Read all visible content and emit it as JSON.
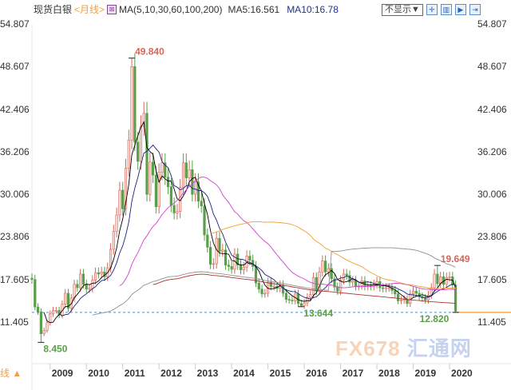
{
  "header": {
    "instrument": "现货白银",
    "period": "<月线>",
    "ma_label": "MA(5,10,30,60,100,200)",
    "ma5": "MA5:16.561",
    "ma10": "MA10:16.78"
  },
  "toolbar": {
    "display_select": "不显示▼",
    "buttons": [
      "crosshair",
      "zoom",
      "step-forward",
      "go-end"
    ]
  },
  "bottom_left": "线 ▲",
  "watermark": {
    "logo": "FX678",
    "cn": "汇通网"
  },
  "chart_data": {
    "type": "candlestick",
    "period": "monthly",
    "start": "2008-07",
    "ylim": [
      8.0,
      54.807
    ],
    "yticks": [
      "54.807",
      "48.607",
      "42.406",
      "36.206",
      "30.006",
      "23.806",
      "17.605",
      "11.405"
    ],
    "xticks": [
      "2009",
      "2010",
      "2011",
      "2012",
      "2013",
      "2014",
      "2015",
      "2016",
      "2017",
      "2018",
      "2019",
      "2020"
    ],
    "first_open": 17.8,
    "closes": [
      17.6,
      13.6,
      12.9,
      9.7,
      10.2,
      11.3,
      12.6,
      13.1,
      13.1,
      12.4,
      14.0,
      15.6,
      13.4,
      14.9,
      16.9,
      16.4,
      18.4,
      16.9,
      16.2,
      16.3,
      17.5,
      18.6,
      18.4,
      18.7,
      18.0,
      19.3,
      22.0,
      24.6,
      27.0,
      30.6,
      27.9,
      33.8,
      37.9,
      48.6,
      37.6,
      34.8,
      39.9,
      41.8,
      30.0,
      34.7,
      32.8,
      28.2,
      33.2,
      34.6,
      32.5,
      31.1,
      28.4,
      27.3,
      27.5,
      31.0,
      34.6,
      32.4,
      33.6,
      30.0,
      31.8,
      29.0,
      28.3,
      24.1,
      22.3,
      19.8,
      19.9,
      23.6,
      21.7,
      21.9,
      19.7,
      19.5,
      19.1,
      21.3,
      19.7,
      19.0,
      19.4,
      21.0,
      20.4,
      19.5,
      17.1,
      16.2,
      15.5,
      15.6,
      17.2,
      16.6,
      16.6,
      16.3,
      16.8,
      15.6,
      14.7,
      14.6,
      14.5,
      15.5,
      14.1,
      13.8,
      14.2,
      15.0,
      15.4,
      17.9,
      15.9,
      18.7,
      20.3,
      18.7,
      19.2,
      17.7,
      16.5,
      15.9,
      17.5,
      18.4,
      18.2,
      17.2,
      17.4,
      16.6,
      16.7,
      17.4,
      16.6,
      16.7,
      16.6,
      16.9,
      17.3,
      16.4,
      16.3,
      16.4,
      16.4,
      16.0,
      15.5,
      14.5,
      14.6,
      14.7,
      14.1,
      15.5,
      15.9,
      15.6,
      15.1,
      14.9,
      14.6,
      15.3,
      16.4,
      18.4,
      17.0,
      18.0,
      16.9,
      17.9,
      18.0,
      16.8,
      13.0
    ],
    "moving_averages": [
      {
        "name": "MA5",
        "period": 5,
        "color": "#000000"
      },
      {
        "name": "MA10",
        "period": 10,
        "color": "#1a237e"
      },
      {
        "name": "MA30",
        "period": 30,
        "color": "#d040d0"
      },
      {
        "name": "MA60",
        "period": 60,
        "color": "#f0a030"
      },
      {
        "name": "MA100",
        "period": 100,
        "color": "#909090"
      },
      {
        "name": "MA200",
        "period": 200,
        "color": "#b03030"
      }
    ],
    "annotations": [
      {
        "label": "49.840",
        "value": 49.84,
        "month": "2011-04",
        "kind": "high"
      },
      {
        "label": "8.450",
        "value": 8.45,
        "month": "2008-10",
        "kind": "low"
      },
      {
        "label": "13.644",
        "value": 13.644,
        "month": "2015-12",
        "kind": "low"
      },
      {
        "label": "19.649",
        "value": 19.649,
        "month": "2019-09",
        "kind": "high"
      },
      {
        "label": "12.820",
        "value": 12.82,
        "month": "2020-03",
        "kind": "low"
      }
    ],
    "reference_line": 12.82,
    "colors": {
      "up": "#d9665a",
      "down": "#5a9e4a",
      "ref_line": "#4a90c8"
    }
  }
}
